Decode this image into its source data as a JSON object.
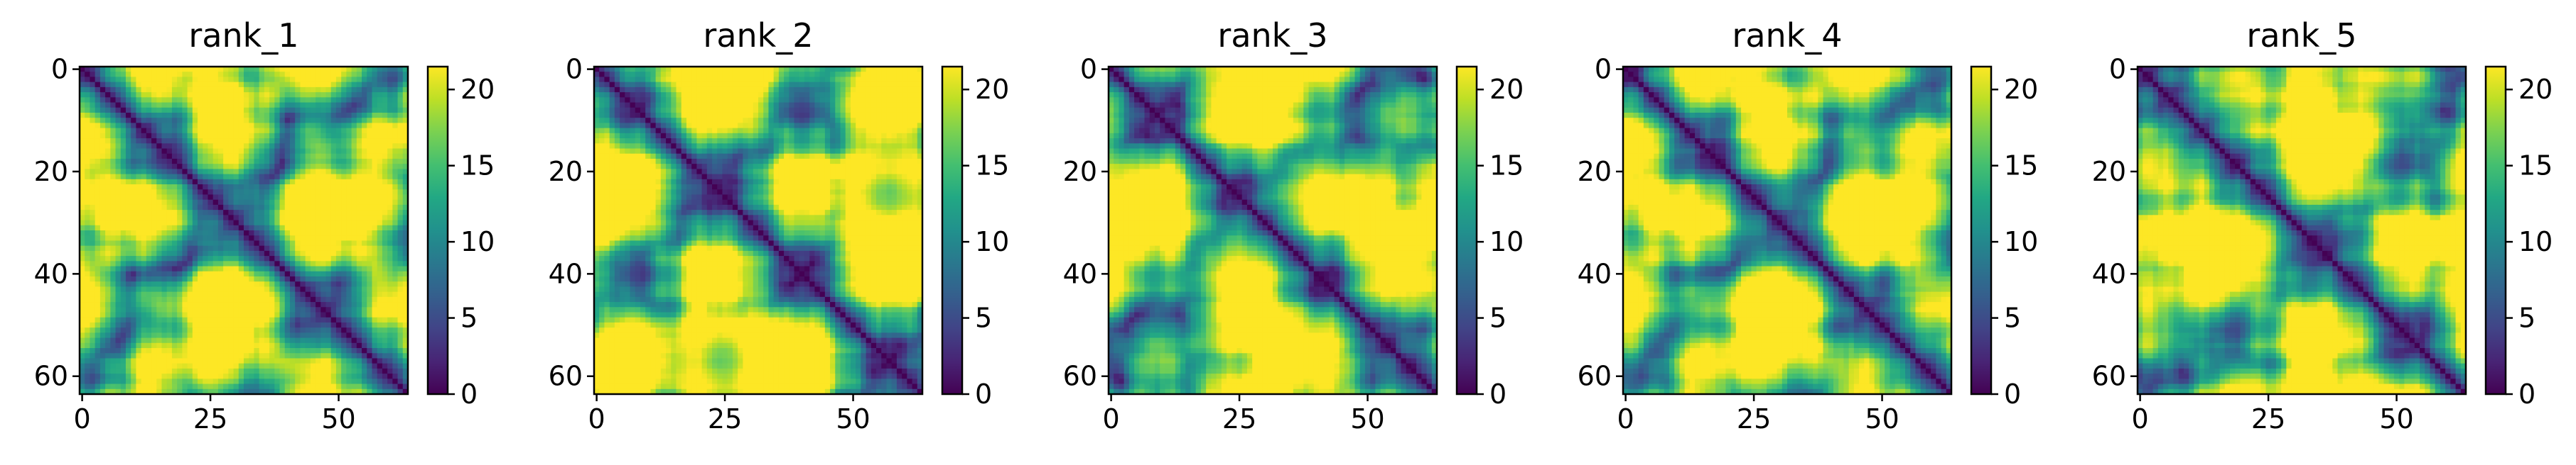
{
  "chart_data": {
    "type": "heatmap",
    "matrix_size": 64,
    "colormap": "viridis",
    "colorbar": {
      "min": 0,
      "max": 21.5,
      "ticks": [
        0,
        5,
        10,
        15,
        20
      ]
    },
    "x_ticks": [
      0,
      25,
      50
    ],
    "y_ticks": [
      0,
      20,
      40,
      60
    ],
    "xlim": [
      -0.5,
      63.5
    ],
    "ylim": [
      63.5,
      -0.5
    ],
    "grid": false,
    "panels": [
      {
        "title": "rank_1",
        "seed": 11
      },
      {
        "title": "rank_2",
        "seed": 23
      },
      {
        "title": "rank_3",
        "seed": 37
      },
      {
        "title": "rank_4",
        "seed": 41
      },
      {
        "title": "rank_5",
        "seed": 53
      }
    ]
  }
}
